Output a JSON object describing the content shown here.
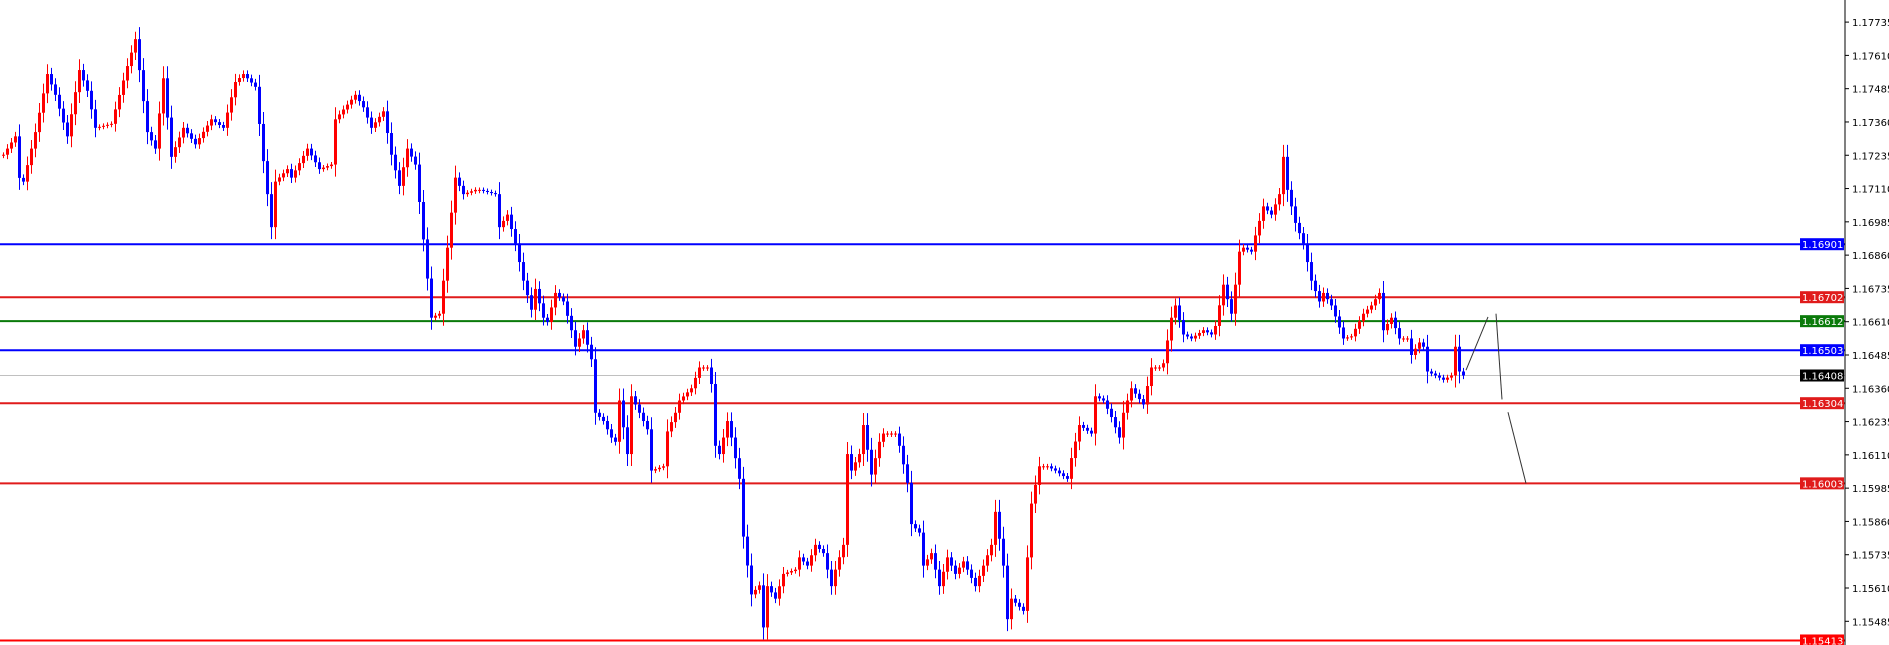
{
  "chart_data": {
    "type": "candlestick",
    "title": "",
    "xlabel": "",
    "ylabel": "",
    "ylim": [
      1.15396,
      1.17818
    ],
    "grid": false,
    "y_ticks": [
      "1.17735",
      "1.17610",
      "1.17485",
      "1.17360",
      "1.17235",
      "1.17110",
      "1.16985",
      "1.16860",
      "1.16735",
      "1.16610",
      "1.16485",
      "1.16360",
      "1.16235",
      "1.16110",
      "1.15985",
      "1.15860",
      "1.15735",
      "1.15610",
      "1.15485"
    ],
    "bar_count": 366,
    "close_path": [
      [
        0,
        1.17237
      ],
      [
        3,
        1.17306
      ],
      [
        4,
        1.1715
      ],
      [
        5,
        1.17136
      ],
      [
        8,
        1.17322
      ],
      [
        11,
        1.1754
      ],
      [
        13,
        1.17462
      ],
      [
        16,
        1.17306
      ],
      [
        19,
        1.17555
      ],
      [
        21,
        1.17477
      ],
      [
        23,
        1.17338
      ],
      [
        27,
        1.17353
      ],
      [
        31,
        1.1757
      ],
      [
        33,
        1.17671
      ],
      [
        36,
        1.17322
      ],
      [
        38,
        1.1726
      ],
      [
        40,
        1.17524
      ],
      [
        42,
        1.17229
      ],
      [
        45,
        1.17338
      ],
      [
        48,
        1.17276
      ],
      [
        52,
        1.1737
      ],
      [
        55,
        1.17338
      ],
      [
        58,
        1.1751
      ],
      [
        60,
        1.1754
      ],
      [
        63,
        1.17492
      ],
      [
        65,
        1.17213
      ],
      [
        67,
        1.16965
      ],
      [
        68,
        1.17136
      ],
      [
        71,
        1.17183
      ],
      [
        72,
        1.17151
      ],
      [
        76,
        1.1726
      ],
      [
        79,
        1.17183
      ],
      [
        82,
        1.172
      ],
      [
        83,
        1.1737
      ],
      [
        88,
        1.17462
      ],
      [
        90,
        1.17415
      ],
      [
        92,
        1.17338
      ],
      [
        95,
        1.174
      ],
      [
        97,
        1.17237
      ],
      [
        99,
        1.1712
      ],
      [
        101,
        1.1726
      ],
      [
        103,
        1.172
      ],
      [
        105,
        1.16919
      ],
      [
        107,
        1.16625
      ],
      [
        109,
        1.1664
      ],
      [
        111,
        1.16888
      ],
      [
        113,
        1.17151
      ],
      [
        115,
        1.17089
      ],
      [
        118,
        1.17105
      ],
      [
        119,
        1.17105
      ],
      [
        123,
        1.17089
      ],
      [
        124,
        1.16965
      ],
      [
        126,
        1.17012
      ],
      [
        128,
        1.16904
      ],
      [
        130,
        1.16764
      ],
      [
        132,
        1.16655
      ],
      [
        133,
        1.16733
      ],
      [
        135,
        1.16625
      ],
      [
        136,
        1.16609
      ],
      [
        138,
        1.16718
      ],
      [
        140,
        1.16686
      ],
      [
        142,
        1.16578
      ],
      [
        143,
        1.16516
      ],
      [
        145,
        1.16578
      ],
      [
        147,
        1.16469
      ],
      [
        148,
        1.16268
      ],
      [
        150,
        1.16237
      ],
      [
        152,
        1.16175
      ],
      [
        153,
        1.16159
      ],
      [
        154,
        1.16314
      ],
      [
        156,
        1.16113
      ],
      [
        157,
        1.1633
      ],
      [
        159,
        1.16268
      ],
      [
        161,
        1.16206
      ],
      [
        162,
        1.16051
      ],
      [
        165,
        1.16067
      ],
      [
        166,
        1.16198
      ],
      [
        168,
        1.16268
      ],
      [
        169,
        1.16314
      ],
      [
        172,
        1.1636
      ],
      [
        174,
        1.16438
      ],
      [
        176,
        1.16438
      ],
      [
        177,
        1.16376
      ],
      [
        178,
        1.16144
      ],
      [
        179,
        1.16113
      ],
      [
        181,
        1.16237
      ],
      [
        182,
        1.16175
      ],
      [
        184,
        1.1602
      ],
      [
        185,
        1.15803
      ],
      [
        187,
        1.15586
      ],
      [
        189,
        1.1562
      ],
      [
        190,
        1.15462
      ],
      [
        191,
        1.15617
      ],
      [
        193,
        1.1557
      ],
      [
        195,
        1.15663
      ],
      [
        198,
        1.15679
      ],
      [
        199,
        1.15725
      ],
      [
        201,
        1.15694
      ],
      [
        203,
        1.15772
      ],
      [
        205,
        1.15741
      ],
      [
        207,
        1.15617
      ],
      [
        208,
        1.15679
      ],
      [
        210,
        1.15772
      ],
      [
        211,
        1.16113
      ],
      [
        212,
        1.16051
      ],
      [
        214,
        1.16113
      ],
      [
        215,
        1.16222
      ],
      [
        217,
        1.16036
      ],
      [
        219,
        1.16159
      ],
      [
        220,
        1.1619
      ],
      [
        223,
        1.1619
      ],
      [
        224,
        1.16144
      ],
      [
        226,
        1.16005
      ],
      [
        227,
        1.1585
      ],
      [
        229,
        1.15818
      ],
      [
        230,
        1.15694
      ],
      [
        232,
        1.15741
      ],
      [
        234,
        1.15617
      ],
      [
        236,
        1.15725
      ],
      [
        238,
        1.15663
      ],
      [
        240,
        1.1571
      ],
      [
        243,
        1.15617
      ],
      [
        245,
        1.15694
      ],
      [
        247,
        1.15772
      ],
      [
        248,
        1.15896
      ],
      [
        250,
        1.15694
      ],
      [
        251,
        1.15493
      ],
      [
        252,
        1.1557
      ],
      [
        255,
        1.15524
      ],
      [
        256,
        1.15725
      ],
      [
        257,
        1.15927
      ],
      [
        259,
        1.16067
      ],
      [
        261,
        1.16067
      ],
      [
        263,
        1.16051
      ],
      [
        266,
        1.1602
      ],
      [
        267,
        1.16098
      ],
      [
        269,
        1.16222
      ],
      [
        272,
        1.1619
      ],
      [
        273,
        1.1633
      ],
      [
        275,
        1.16314
      ],
      [
        277,
        1.16252
      ],
      [
        279,
        1.16175
      ],
      [
        280,
        1.16268
      ],
      [
        282,
        1.1636
      ],
      [
        285,
        1.16299
      ],
      [
        287,
        1.16438
      ],
      [
        289,
        1.16438
      ],
      [
        290,
        1.16454
      ],
      [
        292,
        1.16625
      ],
      [
        293,
        1.16671
      ],
      [
        295,
        1.16562
      ],
      [
        297,
        1.16547
      ],
      [
        300,
        1.16578
      ],
      [
        302,
        1.16562
      ],
      [
        303,
        1.16594
      ],
      [
        305,
        1.16749
      ],
      [
        307,
        1.1664
      ],
      [
        308,
        1.16749
      ],
      [
        309,
        1.16873
      ],
      [
        310,
        1.16888
      ],
      [
        312,
        1.16873
      ],
      [
        313,
        1.16934
      ],
      [
        315,
        1.17043
      ],
      [
        317,
        1.17012
      ],
      [
        319,
        1.17089
      ],
      [
        320,
        1.17229
      ],
      [
        321,
        1.17105
      ],
      [
        323,
        1.16981
      ],
      [
        325,
        1.16904
      ],
      [
        327,
        1.16764
      ],
      [
        329,
        1.16686
      ],
      [
        330,
        1.16718
      ],
      [
        332,
        1.16671
      ],
      [
        335,
        1.16547
      ],
      [
        337,
        1.16555
      ],
      [
        340,
        1.1664
      ],
      [
        342,
        1.16671
      ],
      [
        344,
        1.16718
      ],
      [
        345,
        1.16578
      ],
      [
        347,
        1.16625
      ],
      [
        349,
        1.16547
      ],
      [
        351,
        1.16547
      ],
      [
        352,
        1.16485
      ],
      [
        354,
        1.16532
      ],
      [
        355,
        1.16516
      ],
      [
        356,
        1.16423
      ],
      [
        358,
        1.16408
      ],
      [
        360,
        1.16392
      ],
      [
        362,
        1.16408
      ],
      [
        363,
        1.16516
      ],
      [
        364,
        1.16423
      ],
      [
        365,
        1.16408
      ]
    ],
    "bull_color": "#ff0000",
    "bear_color": "#0000ff",
    "current_price": {
      "label": "1.16408",
      "value": 1.16408,
      "line_color": "#c0c0c0",
      "label_bg": "#000000"
    },
    "levels": [
      {
        "label": "1.16901",
        "value": 1.16901,
        "color": "#0000ff"
      },
      {
        "label": "1.16702",
        "value": 1.16702,
        "color": "#e01b1b"
      },
      {
        "label": "1.16612",
        "value": 1.16612,
        "color": "#0a7a0a"
      },
      {
        "label": "1.16503",
        "value": 1.16503,
        "color": "#0000ff"
      },
      {
        "label": "1.16304",
        "value": 1.16304,
        "color": "#e01b1b"
      },
      {
        "label": "1.16003",
        "value": 1.16003,
        "color": "#e01b1b"
      },
      {
        "label": "1.15413",
        "value": 1.15413,
        "color": "#ff0000"
      }
    ],
    "projection": [
      [
        [
          1,
          1.16428
        ],
        [
          6.5,
          1.16628
        ]
      ],
      [
        [
          8.5,
          1.1664
        ],
        [
          10,
          1.16318
        ]
      ],
      [
        [
          11.5,
          1.1627
        ],
        [
          16,
          1.16003
        ]
      ]
    ]
  }
}
